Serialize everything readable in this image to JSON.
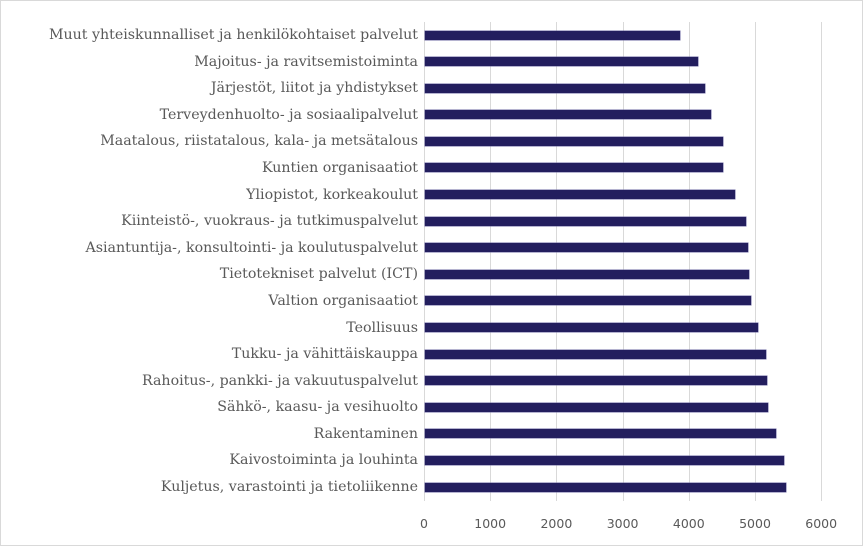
{
  "chart_data": {
    "type": "bar",
    "orientation": "horizontal",
    "title": "",
    "xlabel": "",
    "ylabel": "",
    "xlim": [
      0,
      6000
    ],
    "x_ticks": [
      0,
      1000,
      2000,
      3000,
      4000,
      5000,
      6000
    ],
    "grid": "vertical",
    "legend": "none",
    "bar_color": "#231e5e",
    "categories": [
      "Muut yhteiskunnalliset ja henkilökohtaiset palvelut",
      "Majoitus- ja ravitsemistoiminta",
      "Järjestöt, liitot ja yhdistykset",
      "Terveydenhuolto- ja sosiaalipalvelut",
      "Maatalous, riistatalous, kala- ja metsätalous",
      "Kuntien organisaatiot",
      "Yliopistot, korkeakoulut",
      "Kiinteistö-, vuokraus- ja tutkimuspalvelut",
      "Asiantuntija-, konsultointi- ja koulutuspalvelut ",
      "Tietotekniset palvelut (ICT)",
      "Valtion organisaatiot",
      "Teollisuus",
      "Tukku- ja vähittäiskauppa",
      "Rahoitus-, pankki- ja vakuutuspalvelut",
      "Sähkö-, kaasu- ja vesihuolto",
      "Rakentaminen",
      "Kaivostoiminta ja louhinta",
      "Kuljetus, varastointi ja tietoliikenne"
    ],
    "values": [
      3870,
      4140,
      4250,
      4330,
      4510,
      4520,
      4690,
      4870,
      4900,
      4910,
      4940,
      5050,
      5170,
      5180,
      5200,
      5310,
      5430,
      5470
    ]
  }
}
